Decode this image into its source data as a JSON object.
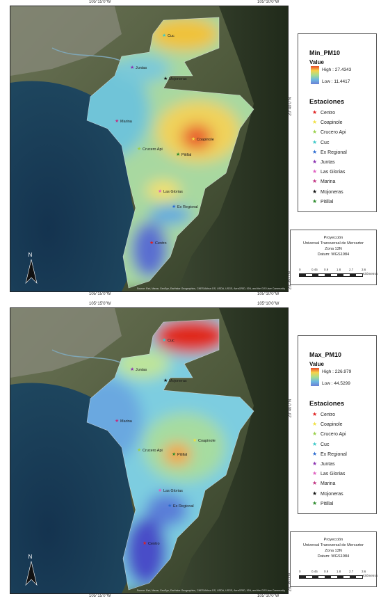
{
  "maps": [
    {
      "id": "min",
      "layer_title": "Min_PM10",
      "value_label": "Value",
      "high_label": "High : 27.4343",
      "low_label": "Low : 11.4417",
      "stations_title": "Estaciones",
      "coords": {
        "top_a": "105°15'0\"W",
        "top_b": "105°10'0\"W",
        "bot_a": "105°15'0\"W",
        "bot_b": "105°10'0\"W",
        "left_a": "20°40'0\"N",
        "left_b": "20°35'0\"N"
      },
      "hotspot": "Coapinole"
    },
    {
      "id": "max",
      "layer_title": "Max_PM10",
      "value_label": "Value",
      "high_label": "High : 226.979",
      "low_label": "Low : 44.5299",
      "stations_title": "Estaciones",
      "coords": {
        "top_a": "105°15'0\"W",
        "top_b": "105°10'0\"W",
        "bot_a": "105°15'0\"W",
        "bot_b": "105°10'0\"W",
        "left_a": "20°40'0\"N",
        "left_b": "20°35'0\"N"
      },
      "hotspot": "Cuc"
    }
  ],
  "stations": [
    {
      "name": "Centro",
      "color": "#e02020"
    },
    {
      "name": "Coapinole",
      "color": "#f0e040"
    },
    {
      "name": "Crucero Api",
      "color": "#9ad04a"
    },
    {
      "name": "Cuc",
      "color": "#3cc8c8"
    },
    {
      "name": "Ex Regional",
      "color": "#2a6ad0"
    },
    {
      "name": "Juntas",
      "color": "#8a30b0"
    },
    {
      "name": "Las Glorias",
      "color": "#e060c0"
    },
    {
      "name": "Marina",
      "color": "#c03080"
    },
    {
      "name": "Mojoneras",
      "color": "#111111"
    },
    {
      "name": "Pitillal",
      "color": "#2a8a2a"
    }
  ],
  "map_labels": [
    "Cuc",
    "Juntas",
    "Mojoneras",
    "Marina",
    "Coapinole",
    "Crucero Api",
    "Pitillal",
    "Las Glorias",
    "Ex Regional",
    "Centro"
  ],
  "projection": {
    "line1": "Proyección",
    "line2": "Universal Transversal de Mercartor",
    "line3": "Zona 13N",
    "line4": "Datum: WGS1984"
  },
  "scale": {
    "ticks": [
      "0",
      "0.45",
      "0.9",
      "1.8",
      "2.7",
      "3.6"
    ],
    "unit": "Kilómetros"
  },
  "north_label": "N",
  "attribution": "Source: Esri, Maxar, GeoEye, Earthstar Geographics, CNES/Airbus DS, USDA, USGS, AeroGRID, IGN, and the GIS User Community"
}
